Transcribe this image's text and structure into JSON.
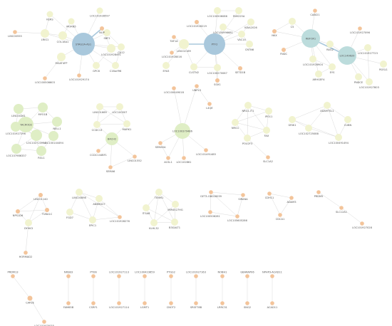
{
  "colors": {
    "green": "#dfeec5",
    "pale": "#f1f3cf",
    "orange": "#f3c49a",
    "blue": "#a9c8dc",
    "teal": "#bcdcdc",
    "edge": "#c8c8c8",
    "hub_edge": "#a9c8dc"
  },
  "nodes": [
    {
      "id": "k1",
      "label": "STAG2A-AS1",
      "type": "blue"
    },
    {
      "id": "k2",
      "label": "KERS",
      "type": "pale"
    },
    {
      "id": "k3",
      "label": "MORN5",
      "type": "pale"
    },
    {
      "id": "k4",
      "label": "LOC101928597",
      "type": "pale"
    },
    {
      "id": "k5",
      "label": "LINC00555",
      "type": "orange"
    },
    {
      "id": "k6",
      "label": "LRIG1",
      "type": "pale"
    },
    {
      "id": "k7",
      "label": "COL18A1",
      "type": "pale"
    },
    {
      "id": "k8",
      "label": "MGAT4FP",
      "type": "pale"
    },
    {
      "id": "k9",
      "label": "LOC100506603",
      "type": "orange"
    },
    {
      "id": "k10",
      "label": "LOC101929174",
      "type": "orange"
    },
    {
      "id": "k11",
      "label": "SBF2",
      "type": "pale"
    },
    {
      "id": "k12",
      "label": "LOC101928491",
      "type": "pale"
    },
    {
      "id": "k13",
      "label": "CA12",
      "type": "pale"
    },
    {
      "id": "k14",
      "label": "GPC6",
      "type": "pale"
    },
    {
      "id": "k15",
      "label": "C16orf96",
      "type": "pale"
    },
    {
      "id": "k16",
      "label": "NUP",
      "type": "orange"
    },
    {
      "id": "p1",
      "label": "PTF2",
      "type": "blue"
    },
    {
      "id": "p2",
      "label": "LOC100506086",
      "type": "pale"
    },
    {
      "id": "p3",
      "label": "FAM225A",
      "type": "pale"
    },
    {
      "id": "p4",
      "label": "LOC101928219",
      "type": "orange"
    },
    {
      "id": "p5",
      "label": "KIAA2026",
      "type": "pale"
    },
    {
      "id": "p6",
      "label": "LOC100996681",
      "type": "pale"
    },
    {
      "id": "p7",
      "label": "TAF1A",
      "type": "orange"
    },
    {
      "id": "p8",
      "label": "LINC02169",
      "type": "pale"
    },
    {
      "id": "p9",
      "label": "VAC14",
      "type": "pale"
    },
    {
      "id": "p10",
      "label": "LOC101928016",
      "type": "orange"
    },
    {
      "id": "p11",
      "label": "CNTN6",
      "type": "pale"
    },
    {
      "id": "p12",
      "label": "EYA3",
      "type": "pale"
    },
    {
      "id": "p13",
      "label": "CLSTN2",
      "type": "pale"
    },
    {
      "id": "p14",
      "label": "LOC100270067",
      "type": "pale"
    },
    {
      "id": "p15",
      "label": "SETD1B",
      "type": "orange"
    },
    {
      "id": "p16",
      "label": "SOX1",
      "type": "orange"
    },
    {
      "id": "r1",
      "label": "RBFOX1",
      "type": "teal"
    },
    {
      "id": "r2",
      "label": "LOC149620",
      "type": "teal"
    },
    {
      "id": "r3",
      "label": "CABCI1",
      "type": "orange"
    },
    {
      "id": "r4",
      "label": "C5",
      "type": "pale"
    },
    {
      "id": "r5",
      "label": "NKX",
      "type": "orange"
    },
    {
      "id": "r6",
      "label": "FNDC",
      "type": "orange"
    },
    {
      "id": "r7",
      "label": "RAG2",
      "type": "pale"
    },
    {
      "id": "r8",
      "label": "LOC101928904",
      "type": "pale"
    },
    {
      "id": "r9",
      "label": "EYS",
      "type": "pale"
    },
    {
      "id": "r10",
      "label": "ARHGEF4",
      "type": "pale"
    },
    {
      "id": "r11",
      "label": "LOC101927096",
      "type": "orange"
    },
    {
      "id": "r12",
      "label": "LOC101927723",
      "type": "pale"
    },
    {
      "id": "r13",
      "label": "RGSL1",
      "type": "pale"
    },
    {
      "id": "r14",
      "label": "PNDCE",
      "type": "pale"
    },
    {
      "id": "r15",
      "label": "LOC101927803",
      "type": "pale"
    },
    {
      "id": "m1",
      "label": "MACROD2",
      "type": "green"
    },
    {
      "id": "m2",
      "label": "LINC00261",
      "type": "green"
    },
    {
      "id": "m3",
      "label": "MYO1B",
      "type": "green"
    },
    {
      "id": "m4",
      "label": "LOC101927296",
      "type": "green"
    },
    {
      "id": "m5",
      "label": "NELL1",
      "type": "green"
    },
    {
      "id": "m6",
      "label": "LOC102723996",
      "type": "green"
    },
    {
      "id": "m7",
      "label": "LOC100144494",
      "type": "green"
    },
    {
      "id": "m8",
      "label": "LOC107986337",
      "type": "green"
    },
    {
      "id": "m9",
      "label": "RGL1",
      "type": "green"
    },
    {
      "id": "b1",
      "label": "LINC01669",
      "type": "pale"
    },
    {
      "id": "b2",
      "label": "LOC100507",
      "type": "pale"
    },
    {
      "id": "b3",
      "label": "CCDC13",
      "type": "pale"
    },
    {
      "id": "b4",
      "label": "MARK1",
      "type": "pale"
    },
    {
      "id": "b5",
      "label": "BACH2",
      "type": "green"
    },
    {
      "id": "b6",
      "label": "CCDC144BF1",
      "type": "orange"
    },
    {
      "id": "b7",
      "label": "LINC01552",
      "type": "orange"
    },
    {
      "id": "b8",
      "label": "SEMA6",
      "type": "orange"
    },
    {
      "id": "c1",
      "label": "LOC100049018",
      "type": "orange"
    },
    {
      "id": "c2",
      "label": "UNPL3",
      "type": "orange"
    },
    {
      "id": "c3",
      "label": "LOC100379486",
      "type": "green"
    },
    {
      "id": "c4",
      "label": "SEMA5A",
      "type": "orange"
    },
    {
      "id": "c5",
      "label": "LOC101491485",
      "type": "orange"
    },
    {
      "id": "c6",
      "label": "ACSL1",
      "type": "orange"
    },
    {
      "id": "c7",
      "label": "LOC102861",
      "type": "orange"
    },
    {
      "id": "c8",
      "label": "L4QE",
      "type": "orange"
    },
    {
      "id": "n1",
      "label": "NRG1-IT1",
      "type": "pale"
    },
    {
      "id": "n2",
      "label": "IPO11",
      "type": "pale"
    },
    {
      "id": "n3",
      "label": "NRG1",
      "type": "pale"
    },
    {
      "id": "n4",
      "label": "FAX",
      "type": "pale"
    },
    {
      "id": "n5",
      "label": "POU2F3",
      "type": "pale"
    },
    {
      "id": "n6",
      "label": "SLC1A2",
      "type": "orange"
    },
    {
      "id": "a1",
      "label": "ADAMTSL1",
      "type": "pale"
    },
    {
      "id": "a2",
      "label": "GRIK1",
      "type": "pale"
    },
    {
      "id": "a3",
      "label": "CUBN",
      "type": "pale"
    },
    {
      "id": "a4",
      "label": "LOC102725088",
      "type": "pale"
    },
    {
      "id": "a5",
      "label": "LOC100491494",
      "type": "pale"
    },
    {
      "id": "s1",
      "label": "LINC01140",
      "type": "orange"
    },
    {
      "id": "s2",
      "label": "NPS1D6",
      "type": "orange"
    },
    {
      "id": "s3",
      "label": "TUBA1C",
      "type": "orange"
    },
    {
      "id": "s4",
      "label": "DYHK3",
      "type": "pale"
    },
    {
      "id": "s5",
      "label": "HORMAD2",
      "type": "orange"
    },
    {
      "id": "t1",
      "label": "LINC00898",
      "type": "pale"
    },
    {
      "id": "t2",
      "label": "ANKRD27",
      "type": "pale"
    },
    {
      "id": "t3",
      "label": "FGD7",
      "type": "pale"
    },
    {
      "id": "t4",
      "label": "EPIC1",
      "type": "pale"
    },
    {
      "id": "t5",
      "label": "LOC101928276",
      "type": "orange"
    },
    {
      "id": "u1",
      "label": "TENM1",
      "type": "pale"
    },
    {
      "id": "u2",
      "label": "ITGA8",
      "type": "pale"
    },
    {
      "id": "u3",
      "label": "MIR4527HG",
      "type": "pale"
    },
    {
      "id": "u4",
      "label": "KLHL32",
      "type": "pale"
    },
    {
      "id": "u5",
      "label": "B3GALT1",
      "type": "pale"
    },
    {
      "id": "v1",
      "label": "GET3-GB028039",
      "type": "orange"
    },
    {
      "id": "v2",
      "label": "SIRANA",
      "type": "orange"
    },
    {
      "id": "v3",
      "label": "LOC100506281",
      "type": "orange"
    },
    {
      "id": "v4",
      "label": "LOC105605286",
      "type": "orange"
    },
    {
      "id": "w1",
      "label": "CDH11",
      "type": "orange"
    },
    {
      "id": "w2",
      "label": "ADAM3",
      "type": "orange"
    },
    {
      "id": "w3",
      "label": "CDCA1",
      "type": "orange"
    },
    {
      "id": "x1",
      "label": "PRDM5",
      "type": "orange"
    },
    {
      "id": "x2",
      "label": "SLC12A1",
      "type": "orange"
    },
    {
      "id": "x3",
      "label": "LOC101927028",
      "type": "orange"
    },
    {
      "id": "y1",
      "label": "PRDM13",
      "type": "orange"
    },
    {
      "id": "y2",
      "label": "CAPZE",
      "type": "orange"
    },
    {
      "id": "y3",
      "label": "LOC101970035",
      "type": "orange"
    },
    {
      "id": "z1a",
      "label": "NRSB3",
      "type": "orange"
    },
    {
      "id": "z1b",
      "label": "FAM65B",
      "type": "orange"
    },
    {
      "id": "z2a",
      "label": "PTEN",
      "type": "orange"
    },
    {
      "id": "z2b",
      "label": "CSRF1",
      "type": "orange"
    },
    {
      "id": "z3a",
      "label": "LOC101927113",
      "type": "orange"
    },
    {
      "id": "z3b",
      "label": "LOC101927114",
      "type": "orange"
    },
    {
      "id": "z4a",
      "label": "LOC100423659",
      "type": "orange"
    },
    {
      "id": "z4b",
      "label": "LGMT1",
      "type": "orange"
    },
    {
      "id": "z5a",
      "label": "PTGS2",
      "type": "orange"
    },
    {
      "id": "z5b",
      "label": "CNOT2",
      "type": "orange"
    },
    {
      "id": "z6a",
      "label": "LOC101927163",
      "type": "orange"
    },
    {
      "id": "z6b",
      "label": "SRSF78B",
      "type": "orange"
    },
    {
      "id": "z7a",
      "label": "NOBH1",
      "type": "orange"
    },
    {
      "id": "z7b",
      "label": "LRRC31",
      "type": "orange"
    },
    {
      "id": "z8a",
      "label": "GBARAP06",
      "type": "orange"
    },
    {
      "id": "z8b",
      "label": "SNG2",
      "type": "orange"
    },
    {
      "id": "z9a",
      "label": "NPHP3-ACAD11",
      "type": "orange"
    },
    {
      "id": "z9b",
      "label": "ACAD11",
      "type": "orange"
    }
  ],
  "edges": [
    [
      "k1",
      "k2"
    ],
    [
      "k1",
      "k3"
    ],
    [
      "k1",
      "k4"
    ],
    [
      "k1",
      "k6"
    ],
    [
      "k1",
      "k7"
    ],
    [
      "k1",
      "k8"
    ],
    [
      "k1",
      "k10"
    ],
    [
      "k1",
      "k11"
    ],
    [
      "k1",
      "k12"
    ],
    [
      "k1",
      "k13"
    ],
    [
      "k1",
      "k14"
    ],
    [
      "k1",
      "k15"
    ],
    [
      "k1",
      "k16"
    ],
    [
      "k5",
      "k6"
    ],
    [
      "k8",
      "k9"
    ],
    [
      "k6",
      "k7"
    ],
    [
      "k2",
      "k6"
    ],
    [
      "k3",
      "k7"
    ],
    [
      "k11",
      "k13"
    ],
    [
      "k12",
      "k14"
    ],
    [
      "k13",
      "k15"
    ],
    [
      "k12",
      "k16"
    ],
    [
      "p1",
      "p2"
    ],
    [
      "p1",
      "p3"
    ],
    [
      "p1",
      "p4"
    ],
    [
      "p1",
      "p5"
    ],
    [
      "p1",
      "p6"
    ],
    [
      "p1",
      "p8"
    ],
    [
      "p1",
      "p9"
    ],
    [
      "p1",
      "p11"
    ],
    [
      "p1",
      "p13"
    ],
    [
      "p1",
      "p14"
    ],
    [
      "p1",
      "p15"
    ],
    [
      "p1",
      "p16"
    ],
    [
      "p7",
      "p8"
    ],
    [
      "p8",
      "p10"
    ],
    [
      "p8",
      "p12"
    ],
    [
      "p8",
      "p13"
    ],
    [
      "p5",
      "p9"
    ],
    [
      "p9",
      "p11"
    ],
    [
      "p2",
      "p3"
    ],
    [
      "p6",
      "p9"
    ],
    [
      "p14",
      "p16"
    ],
    [
      "p13",
      "p14"
    ],
    [
      "r1",
      "r2"
    ],
    [
      "r1",
      "r3"
    ],
    [
      "r1",
      "r4"
    ],
    [
      "r1",
      "r5"
    ],
    [
      "r1",
      "r6"
    ],
    [
      "r1",
      "r7"
    ],
    [
      "r1",
      "r8"
    ],
    [
      "r1",
      "r9"
    ],
    [
      "r1",
      "r10"
    ],
    [
      "r2",
      "r11"
    ],
    [
      "r2",
      "r12"
    ],
    [
      "r2",
      "r13"
    ],
    [
      "r2",
      "r14"
    ],
    [
      "r2",
      "r15"
    ],
    [
      "r2",
      "r7"
    ],
    [
      "r4",
      "r5"
    ],
    [
      "r8",
      "r9"
    ],
    [
      "r9",
      "r10"
    ],
    [
      "r12",
      "r15"
    ],
    [
      "m1",
      "m2"
    ],
    [
      "m1",
      "m3"
    ],
    [
      "m1",
      "m4"
    ],
    [
      "m1",
      "m5"
    ],
    [
      "m1",
      "m6"
    ],
    [
      "m1",
      "m7"
    ],
    [
      "m1",
      "m8"
    ],
    [
      "m1",
      "m9"
    ],
    [
      "m2",
      "m3"
    ],
    [
      "m3",
      "m5"
    ],
    [
      "m5",
      "m7"
    ],
    [
      "m6",
      "m8"
    ],
    [
      "m8",
      "m9"
    ],
    [
      "m2",
      "m4"
    ],
    [
      "m4",
      "m6"
    ],
    [
      "m7",
      "m9"
    ],
    [
      "b1",
      "b2"
    ],
    [
      "b1",
      "b3"
    ],
    [
      "b1",
      "b4"
    ],
    [
      "b2",
      "b3"
    ],
    [
      "b2",
      "b4"
    ],
    [
      "b3",
      "b4"
    ],
    [
      "b3",
      "b5"
    ],
    [
      "b4",
      "b5"
    ],
    [
      "b5",
      "b6"
    ],
    [
      "b5",
      "b7"
    ],
    [
      "b5",
      "b8"
    ],
    [
      "b7",
      "b8"
    ],
    [
      "c1",
      "c3"
    ],
    [
      "c2",
      "c3"
    ],
    [
      "c3",
      "c4"
    ],
    [
      "c3",
      "c5"
    ],
    [
      "c3",
      "c6"
    ],
    [
      "c3",
      "c7"
    ],
    [
      "c2",
      "c8"
    ],
    [
      "c4",
      "c6"
    ],
    [
      "n1",
      "n2"
    ],
    [
      "n1",
      "n3"
    ],
    [
      "n1",
      "n4"
    ],
    [
      "n1",
      "n5"
    ],
    [
      "n2",
      "n4"
    ],
    [
      "n3",
      "n4"
    ],
    [
      "n3",
      "n5"
    ],
    [
      "n4",
      "n5"
    ],
    [
      "n2",
      "n3"
    ],
    [
      "n5",
      "n6"
    ],
    [
      "a1",
      "a2"
    ],
    [
      "a1",
      "a3"
    ],
    [
      "a1",
      "a4"
    ],
    [
      "a1",
      "a5"
    ],
    [
      "a2",
      "a4"
    ],
    [
      "a3",
      "a5"
    ],
    [
      "a4",
      "a5"
    ],
    [
      "a2",
      "a5"
    ],
    [
      "s1",
      "s2"
    ],
    [
      "s1",
      "s3"
    ],
    [
      "s1",
      "s4"
    ],
    [
      "s2",
      "s4"
    ],
    [
      "s3",
      "s4"
    ],
    [
      "s2",
      "s3"
    ],
    [
      "s4",
      "s5"
    ],
    [
      "t1",
      "t2"
    ],
    [
      "t1",
      "t3"
    ],
    [
      "t1",
      "t4"
    ],
    [
      "t2",
      "t4"
    ],
    [
      "t2",
      "t5"
    ],
    [
      "t3",
      "t4"
    ],
    [
      "t4",
      "t5"
    ],
    [
      "t1",
      "t5"
    ],
    [
      "u1",
      "u2"
    ],
    [
      "u1",
      "u3"
    ],
    [
      "u1",
      "u4"
    ],
    [
      "u1",
      "u5"
    ],
    [
      "u2",
      "u4"
    ],
    [
      "u3",
      "u5"
    ],
    [
      "u4",
      "u5"
    ],
    [
      "u2",
      "u5"
    ],
    [
      "u3",
      "u4"
    ],
    [
      "v1",
      "v2"
    ],
    [
      "v1",
      "v3"
    ],
    [
      "v2",
      "v4"
    ],
    [
      "v3",
      "v4"
    ],
    [
      "v1",
      "v4"
    ],
    [
      "w1",
      "w2"
    ],
    [
      "w1",
      "w3"
    ],
    [
      "w2",
      "w3"
    ],
    [
      "x1",
      "x2"
    ],
    [
      "x2",
      "x3"
    ],
    [
      "y1",
      "y2"
    ],
    [
      "y2",
      "y3"
    ],
    [
      "z1a",
      "z1b"
    ],
    [
      "z2a",
      "z2b"
    ],
    [
      "z3a",
      "z3b"
    ],
    [
      "z4a",
      "z4b"
    ],
    [
      "z5a",
      "z5b"
    ],
    [
      "z6a",
      "z6b"
    ],
    [
      "z7a",
      "z7b"
    ],
    [
      "z8a",
      "z8b"
    ],
    [
      "z9a",
      "z9b"
    ]
  ]
}
